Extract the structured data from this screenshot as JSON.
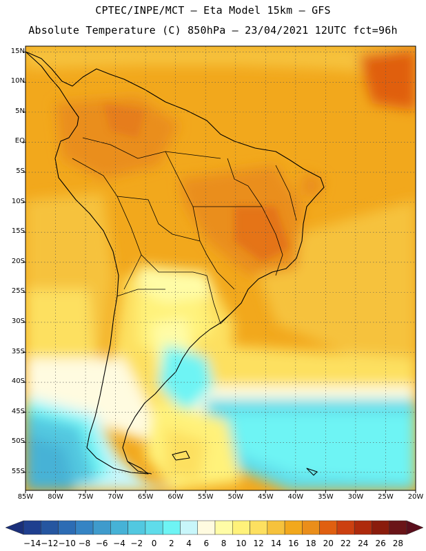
{
  "header": {
    "line1": "CPTEC/INPE/MCT –  Eta Model 15km – GFS",
    "line2": "Absolute Temperature (C) 850hPa – 23/04/2021 12UTC fct=96h"
  },
  "map": {
    "lat_labels": [
      "15N",
      "10N",
      "5N",
      "EQ",
      "5S",
      "10S",
      "15S",
      "20S",
      "25S",
      "30S",
      "35S",
      "40S",
      "45S",
      "50S",
      "55S"
    ],
    "lon_labels": [
      "85W",
      "80W",
      "75W",
      "70W",
      "65W",
      "60W",
      "55W",
      "50W",
      "45W",
      "40W",
      "35W",
      "30W",
      "25W",
      "20W"
    ],
    "lon_range": [
      -85,
      -20
    ],
    "lat_range": [
      -58,
      16
    ]
  },
  "colorbar": {
    "labels": [
      "-14",
      "-12",
      "-10",
      "-8",
      "-6",
      "-4",
      "-2",
      "0",
      "2",
      "4",
      "6",
      "8",
      "10",
      "12",
      "14",
      "16",
      "18",
      "20",
      "22",
      "24",
      "26",
      "28"
    ],
    "colors": [
      "#1f3f8f",
      "#2556a0",
      "#2c6cb4",
      "#3584c4",
      "#3f9bcc",
      "#46b2d6",
      "#52c8e0",
      "#5fdcea",
      "#6ef4f4",
      "#c8f6fa",
      "#fffbe0",
      "#fffca6",
      "#fff27a",
      "#fde060",
      "#f6c23c",
      "#f2a81c",
      "#ea8e1a",
      "#e05f10",
      "#cc4010",
      "#ae2a0c",
      "#8a1c0c",
      "#6a1418"
    ],
    "low_color": "#1a2f7a",
    "high_color": "#5a0e1c"
  }
}
